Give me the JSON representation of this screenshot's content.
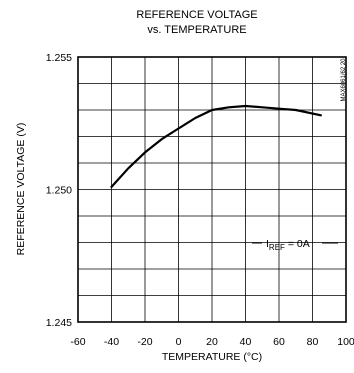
{
  "chart_data": {
    "type": "line",
    "title_line1": "REFERENCE VOLTAGE",
    "title_line2": "vs. TEMPERATURE",
    "xlabel": "TEMPERATURE (°C)",
    "ylabel": "REFERENCE VOLTAGE (V)",
    "xlim": [
      -60,
      100
    ],
    "ylim": [
      1.245,
      1.255
    ],
    "x_ticks": [
      -60,
      -40,
      -20,
      0,
      20,
      40,
      60,
      80,
      100
    ],
    "x_tick_labels": [
      "-60",
      "-40",
      "-20",
      "0",
      "20",
      "40",
      "60",
      "80",
      "100"
    ],
    "y_ticks": [
      1.245,
      1.25,
      1.255
    ],
    "y_tick_labels": [
      "1.245",
      "1.250",
      "1.255"
    ],
    "grid": true,
    "annotation": {
      "main": "I",
      "sub": "REF",
      "suffix": " = 0A"
    },
    "figure_code": "MAX6061/62 20",
    "series": [
      {
        "x": [
          -40,
          -30,
          -20,
          -10,
          0,
          10,
          20,
          30,
          40,
          50,
          60,
          70,
          85
        ],
        "y": [
          1.2501,
          1.2508,
          1.2514,
          1.2519,
          1.2523,
          1.2527,
          1.253,
          1.2531,
          1.25315,
          1.2531,
          1.25305,
          1.253,
          1.2528
        ]
      }
    ]
  }
}
